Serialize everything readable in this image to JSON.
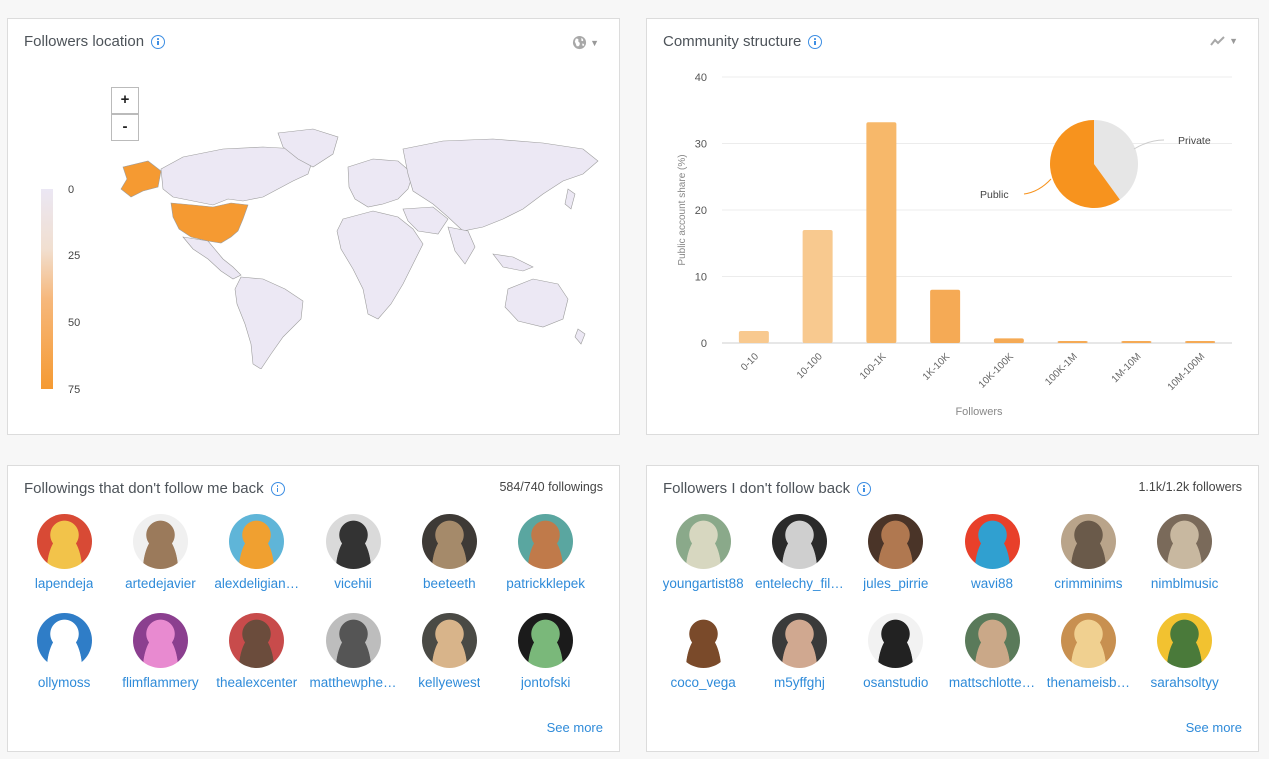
{
  "map_card": {
    "title": "Followers location",
    "zoom_in": "+",
    "zoom_out": "-",
    "legend": [
      "0",
      "25",
      "50",
      "75"
    ],
    "highlight_color": "#f59a32",
    "base_color": "#ece8f4"
  },
  "community_card": {
    "title": "Community structure",
    "pie_labels": [
      "Private",
      "Public"
    ]
  },
  "chart_data": {
    "type": "bar",
    "title": "Community structure",
    "xlabel": "Followers",
    "ylabel": "Public account share (%)",
    "categories": [
      "0-10",
      "10-100",
      "100-1K",
      "1K-10K",
      "10K-100K",
      "100K-1M",
      "1M-10M",
      "10M-100M"
    ],
    "values": [
      1.8,
      17,
      33.2,
      8,
      0.7,
      0.3,
      0.3,
      0.3
    ],
    "ylim": [
      0,
      40
    ],
    "yticks": [
      0,
      10,
      20,
      30,
      40
    ],
    "grid": true,
    "bar_colors": [
      "#f8c98f",
      "#f8c98f",
      "#f7b86a",
      "#f5aa55",
      "#f5aa55",
      "#f5aa55",
      "#f5aa55",
      "#f5aa55"
    ],
    "inset_pie": {
      "slices": [
        {
          "label": "Public",
          "value": 60,
          "color": "#f7931e"
        },
        {
          "label": "Private",
          "value": 40,
          "color": "#e6e6e6"
        }
      ]
    }
  },
  "followings_card": {
    "title": "Followings that don't follow me back",
    "count": "584/740 followings",
    "see_more": "See more",
    "users": [
      {
        "name": "lapendeja",
        "c1": "#d84a35",
        "c2": "#f2c34a"
      },
      {
        "name": "artedejavier",
        "c1": "#f0f0f0",
        "c2": "#9b7a5b"
      },
      {
        "name": "alexdeligian…",
        "c1": "#5fb5d8",
        "c2": "#f0a030"
      },
      {
        "name": "vicehii",
        "c1": "#dadada",
        "c2": "#333333"
      },
      {
        "name": "beeteeth",
        "c1": "#3e3a36",
        "c2": "#a58a6a"
      },
      {
        "name": "patrickklepek",
        "c1": "#5aa6a0",
        "c2": "#c07a4a"
      },
      {
        "name": "ollymoss",
        "c1": "#2f7dc7",
        "c2": "#ffffff"
      },
      {
        "name": "flimflammery",
        "c1": "#8b3f8f",
        "c2": "#e88ad0"
      },
      {
        "name": "thealexcenter",
        "c1": "#c84b4b",
        "c2": "#6b4c3c"
      },
      {
        "name": "matthewphe…",
        "c1": "#bdbdbd",
        "c2": "#555555"
      },
      {
        "name": "kellyewest",
        "c1": "#4a4a45",
        "c2": "#d8b48a"
      },
      {
        "name": "jontofski",
        "c1": "#1b1b1b",
        "c2": "#7ab87a"
      }
    ]
  },
  "followers_card": {
    "title": "Followers I don't follow back",
    "count": "1.1k/1.2k followers",
    "see_more": "See more",
    "users": [
      {
        "name": "youngartist88",
        "c1": "#8aa98a",
        "c2": "#d7d7c0"
      },
      {
        "name": "entelechy_fil…",
        "c1": "#2a2a2a",
        "c2": "#cfcfcf"
      },
      {
        "name": "jules_pirrie",
        "c1": "#4a3428",
        "c2": "#b07850"
      },
      {
        "name": "wavi88",
        "c1": "#e8402a",
        "c2": "#30a0d0"
      },
      {
        "name": "crimminims",
        "c1": "#b9a48a",
        "c2": "#6a5a4a"
      },
      {
        "name": "nimblmusic",
        "c1": "#7a6a5a",
        "c2": "#c8b8a0"
      },
      {
        "name": "coco_vega",
        "c1": "#ffffff",
        "c2": "#7a4a2a"
      },
      {
        "name": "m5yffghj",
        "c1": "#3a3a3a",
        "c2": "#d0a890"
      },
      {
        "name": "osanstudio",
        "c1": "#f2f2f2",
        "c2": "#222222"
      },
      {
        "name": "mattschlotte…",
        "c1": "#5a7a5a",
        "c2": "#caa888"
      },
      {
        "name": "thenameisb…",
        "c1": "#c89050",
        "c2": "#f0d090"
      },
      {
        "name": "sarahsoltyy",
        "c1": "#f2c230",
        "c2": "#4a7a3a"
      }
    ]
  }
}
